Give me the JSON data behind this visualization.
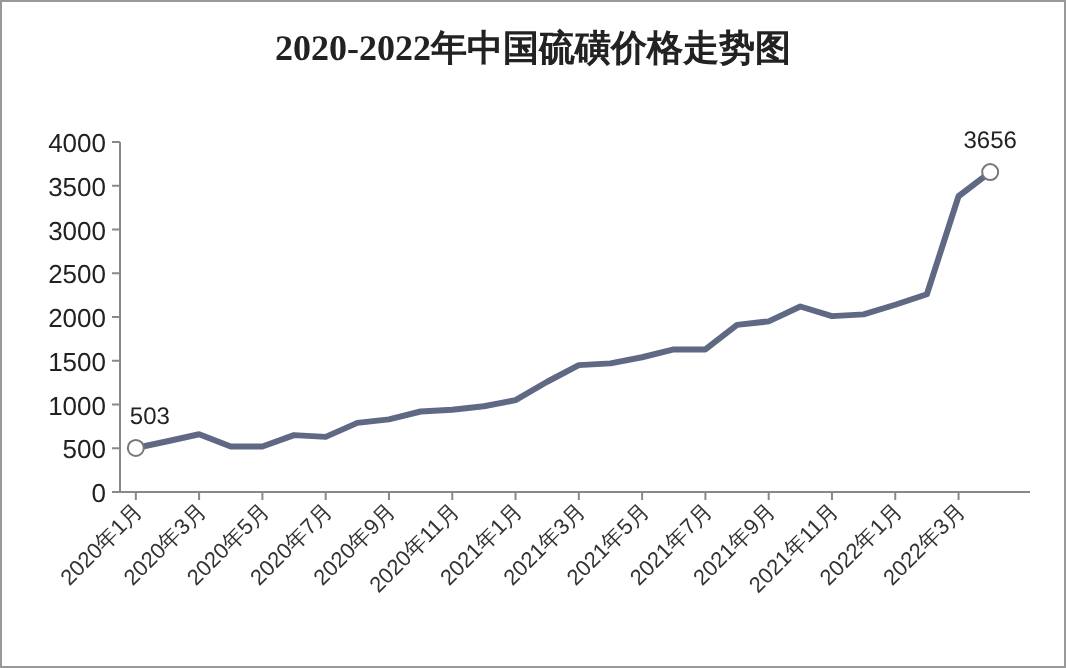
{
  "chart_data": {
    "type": "line",
    "title": "2020-2022年中国硫磺价格走势图",
    "categories": [
      "2020年1月",
      null,
      "2020年3月",
      null,
      "2020年5月",
      null,
      "2020年7月",
      null,
      "2020年9月",
      null,
      "2020年11月",
      null,
      "2021年1月",
      null,
      "2021年3月",
      null,
      "2021年5月",
      null,
      "2021年7月",
      null,
      "2021年9月",
      null,
      "2021年11月",
      null,
      "2022年1月",
      null,
      "2022年3月",
      null
    ],
    "series": [
      {
        "color": "#5f6984",
        "values": [
          503,
          580,
          660,
          520,
          520,
          650,
          630,
          790,
          830,
          920,
          940,
          980,
          1050,
          1260,
          1450,
          1470,
          1540,
          1630,
          1630,
          1910,
          1950,
          2120,
          2010,
          2030,
          2140,
          2260,
          3380,
          3656
        ],
        "value_labels": [
          "503",
          null,
          null,
          null,
          null,
          null,
          null,
          null,
          null,
          null,
          null,
          null,
          null,
          null,
          null,
          null,
          null,
          null,
          null,
          null,
          null,
          null,
          null,
          null,
          null,
          null,
          null,
          "3656"
        ]
      }
    ],
    "ylim": [
      0,
      4000
    ],
    "yticks": [
      0,
      500,
      1000,
      1500,
      2000,
      2500,
      3000,
      3500,
      4000
    ],
    "grid": false,
    "marker": "none",
    "line_style": "solid"
  }
}
